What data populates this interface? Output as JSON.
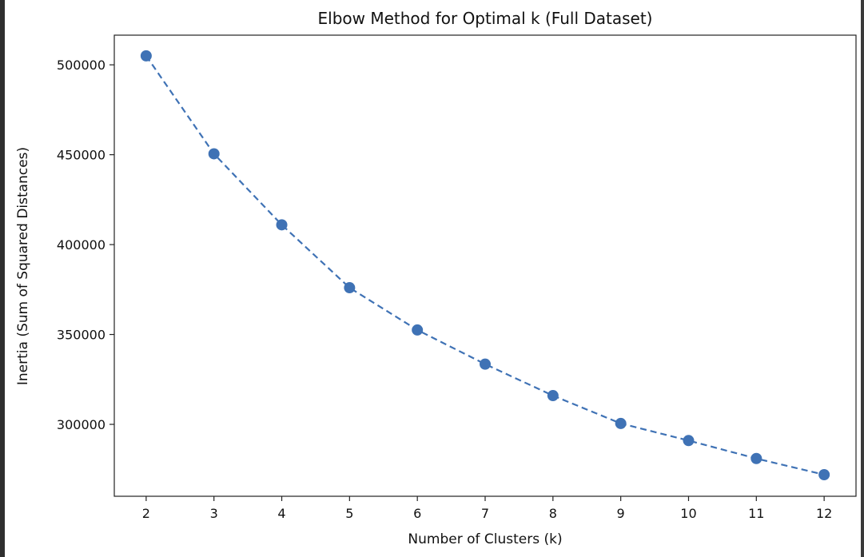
{
  "chart_data": {
    "type": "line",
    "title": "Elbow Method for Optimal k (Full Dataset)",
    "xlabel": "Number of Clusters (k)",
    "ylabel": "Inertia (Sum of Squared Distances)",
    "x": [
      2,
      3,
      4,
      5,
      6,
      7,
      8,
      9,
      10,
      11,
      12
    ],
    "series": [
      {
        "values": [
          505000,
          450500,
          411000,
          376000,
          352500,
          333500,
          316000,
          300500,
          291000,
          281000,
          272000
        ]
      }
    ],
    "xlim": [
      1.53,
      12.47
    ],
    "ylim": [
      260000,
      516500
    ],
    "xticks": [
      "2",
      "3",
      "4",
      "5",
      "6",
      "7",
      "8",
      "9",
      "10",
      "11",
      "12"
    ],
    "yticks": [
      "300000",
      "350000",
      "400000",
      "450000",
      "500000"
    ],
    "ytick_values": [
      300000,
      350000,
      400000,
      450000,
      500000
    ],
    "grid": false,
    "line_style": "dashed",
    "marker": "circle",
    "color": "#3f72b5"
  }
}
